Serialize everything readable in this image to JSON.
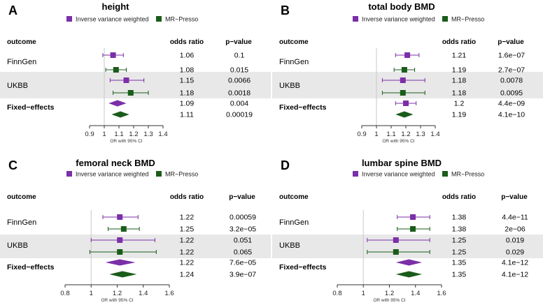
{
  "colors": {
    "ivw": "#7b2fa8",
    "presso": "#1a5c1a",
    "band": "#e8e8e8",
    "ref_line": "#c8c8c8"
  },
  "chart_data": [
    {
      "letter": "A",
      "type": "forest",
      "title": "height",
      "legend": [
        "Inverse variance weighted",
        "MR−Presso"
      ],
      "headers": {
        "outcome": "outcome",
        "or": "odds ratio",
        "p": "p−value"
      },
      "xlabel": "OR with 95% CI",
      "ticks": [
        "0.9",
        "1",
        "1.1",
        "1.2",
        "1.3",
        "1.4"
      ],
      "xlim": [
        0.9,
        1.4
      ],
      "ref": 1,
      "groups": [
        "FinnGen",
        "UKBB",
        "Fixed−effects"
      ],
      "rows": [
        {
          "group": 0,
          "method": 0,
          "or": 1.06,
          "lo": 0.99,
          "hi": 1.13,
          "or_text": "1.06",
          "p_text": "0.1"
        },
        {
          "group": 0,
          "method": 1,
          "or": 1.08,
          "lo": 1.01,
          "hi": 1.15,
          "or_text": "1.08",
          "p_text": "0.015"
        },
        {
          "group": 1,
          "method": 0,
          "or": 1.15,
          "lo": 1.04,
          "hi": 1.27,
          "or_text": "1.15",
          "p_text": "0.0066"
        },
        {
          "group": 1,
          "method": 1,
          "or": 1.18,
          "lo": 1.06,
          "hi": 1.3,
          "or_text": "1.18",
          "p_text": "0.0018"
        },
        {
          "group": 2,
          "method": 0,
          "or": 1.09,
          "lo": 1.03,
          "hi": 1.15,
          "or_text": "1.09",
          "p_text": "0.004",
          "diamond": true
        },
        {
          "group": 2,
          "method": 1,
          "or": 1.11,
          "lo": 1.05,
          "hi": 1.17,
          "or_text": "1.11",
          "p_text": "0.00019",
          "diamond": true
        }
      ]
    },
    {
      "letter": "B",
      "type": "forest",
      "title": "total body BMD",
      "legend": [
        "Inverse variance weighted",
        "MR−Presso"
      ],
      "headers": {
        "outcome": "outcome",
        "or": "odds ratio",
        "p": "p−value"
      },
      "xlabel": "OR with 95% CI",
      "ticks": [
        "0.9",
        "1",
        "1.1",
        "1.2",
        "1.3",
        "1.4"
      ],
      "xlim": [
        0.9,
        1.4
      ],
      "ref": 1,
      "groups": [
        "FinnGen",
        "UKBB",
        "Fixed−effects"
      ],
      "rows": [
        {
          "group": 0,
          "method": 0,
          "or": 1.21,
          "lo": 1.13,
          "hi": 1.29,
          "or_text": "1.21",
          "p_text": "1.6e−07"
        },
        {
          "group": 0,
          "method": 1,
          "or": 1.19,
          "lo": 1.12,
          "hi": 1.26,
          "or_text": "1.19",
          "p_text": "2.7e−07"
        },
        {
          "group": 1,
          "method": 0,
          "or": 1.18,
          "lo": 1.04,
          "hi": 1.33,
          "or_text": "1.18",
          "p_text": "0.0078"
        },
        {
          "group": 1,
          "method": 1,
          "or": 1.18,
          "lo": 1.04,
          "hi": 1.33,
          "or_text": "1.18",
          "p_text": "0.0095"
        },
        {
          "group": 2,
          "method": 0,
          "or": 1.2,
          "lo": 1.13,
          "hi": 1.27,
          "or_text": "1.2",
          "p_text": "4.4e−09"
        },
        {
          "group": 2,
          "method": 1,
          "or": 1.19,
          "lo": 1.13,
          "hi": 1.25,
          "or_text": "1.19",
          "p_text": "4.1e−10",
          "diamond": true
        }
      ]
    },
    {
      "letter": "C",
      "type": "forest",
      "title": "femoral neck BMD",
      "legend": [
        "Inverse variance weighted",
        "MR−Presso"
      ],
      "headers": {
        "outcome": "outcome",
        "or": "odds ratio",
        "p": "p−value"
      },
      "xlabel": "OR with 95% CI",
      "ticks": [
        "0.8",
        "1",
        "1.2",
        "1.4",
        "1.6"
      ],
      "xlim": [
        0.8,
        1.6
      ],
      "ref": 1,
      "groups": [
        "FinnGen",
        "UKBB",
        "Fixed−effects"
      ],
      "rows": [
        {
          "group": 0,
          "method": 0,
          "or": 1.22,
          "lo": 1.09,
          "hi": 1.36,
          "or_text": "1.22",
          "p_text": "0.00059"
        },
        {
          "group": 0,
          "method": 1,
          "or": 1.25,
          "lo": 1.13,
          "hi": 1.37,
          "or_text": "1.25",
          "p_text": "3.2e−05"
        },
        {
          "group": 1,
          "method": 0,
          "or": 1.22,
          "lo": 1.0,
          "hi": 1.49,
          "or_text": "1.22",
          "p_text": "0.051"
        },
        {
          "group": 1,
          "method": 1,
          "or": 1.22,
          "lo": 0.99,
          "hi": 1.5,
          "or_text": "1.22",
          "p_text": "0.065"
        },
        {
          "group": 2,
          "method": 0,
          "or": 1.22,
          "lo": 1.11,
          "hi": 1.34,
          "or_text": "1.22",
          "p_text": "7.6e−05",
          "diamond": true
        },
        {
          "group": 2,
          "method": 1,
          "or": 1.24,
          "lo": 1.14,
          "hi": 1.35,
          "or_text": "1.24",
          "p_text": "3.9e−07",
          "diamond": true
        }
      ]
    },
    {
      "letter": "D",
      "type": "forest",
      "title": "lumbar spine BMD",
      "legend": [
        "Inverse variance weighted",
        "MR−Presso"
      ],
      "headers": {
        "outcome": "outcome",
        "or": "odds ratio",
        "p": "p−value"
      },
      "xlabel": "OR with 95% CI",
      "ticks": [
        "0.8",
        "1",
        "1.2",
        "1.4",
        "1.6"
      ],
      "xlim": [
        0.8,
        1.6
      ],
      "ref": 1,
      "groups": [
        "FinnGen",
        "UKBB",
        "Fixed−effects"
      ],
      "rows": [
        {
          "group": 0,
          "method": 0,
          "or": 1.38,
          "lo": 1.26,
          "hi": 1.51,
          "or_text": "1.38",
          "p_text": "4.4e−11"
        },
        {
          "group": 0,
          "method": 1,
          "or": 1.38,
          "lo": 1.26,
          "hi": 1.51,
          "or_text": "1.38",
          "p_text": "2e−06"
        },
        {
          "group": 1,
          "method": 0,
          "or": 1.25,
          "lo": 1.03,
          "hi": 1.51,
          "or_text": "1.25",
          "p_text": "0.019"
        },
        {
          "group": 1,
          "method": 1,
          "or": 1.25,
          "lo": 1.03,
          "hi": 1.51,
          "or_text": "1.25",
          "p_text": "0.029"
        },
        {
          "group": 2,
          "method": 0,
          "or": 1.35,
          "lo": 1.25,
          "hi": 1.45,
          "or_text": "1.35",
          "p_text": "4.1e−12",
          "diamond": true
        },
        {
          "group": 2,
          "method": 1,
          "or": 1.35,
          "lo": 1.25,
          "hi": 1.45,
          "or_text": "1.35",
          "p_text": "4.1e−12",
          "diamond": true
        }
      ]
    }
  ]
}
